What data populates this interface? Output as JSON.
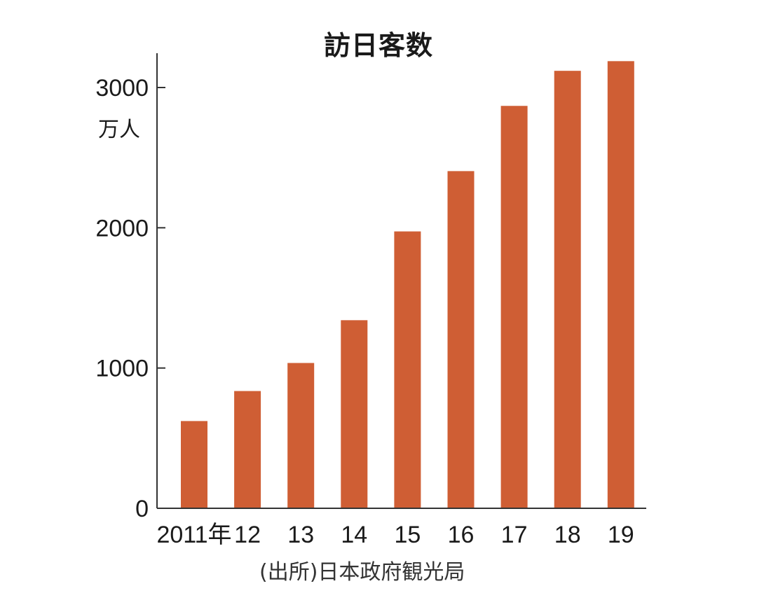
{
  "chart_data": {
    "type": "bar",
    "title": "訪日客数",
    "unit_label": "万人",
    "source_note": "(出所)日本政府観光局",
    "categories": [
      "2011年",
      "12",
      "13",
      "14",
      "15",
      "16",
      "17",
      "18",
      "19"
    ],
    "values": [
      622,
      836,
      1036,
      1341,
      1974,
      2404,
      2869,
      3119,
      3188
    ],
    "ylim": [
      0,
      3250
    ],
    "yticks": [
      0,
      1000,
      2000,
      3000
    ],
    "ytick_labels": [
      "0",
      "1000",
      "2000",
      "3000"
    ],
    "bar_color": "#cf5e34",
    "grid": false,
    "legend": "none"
  }
}
